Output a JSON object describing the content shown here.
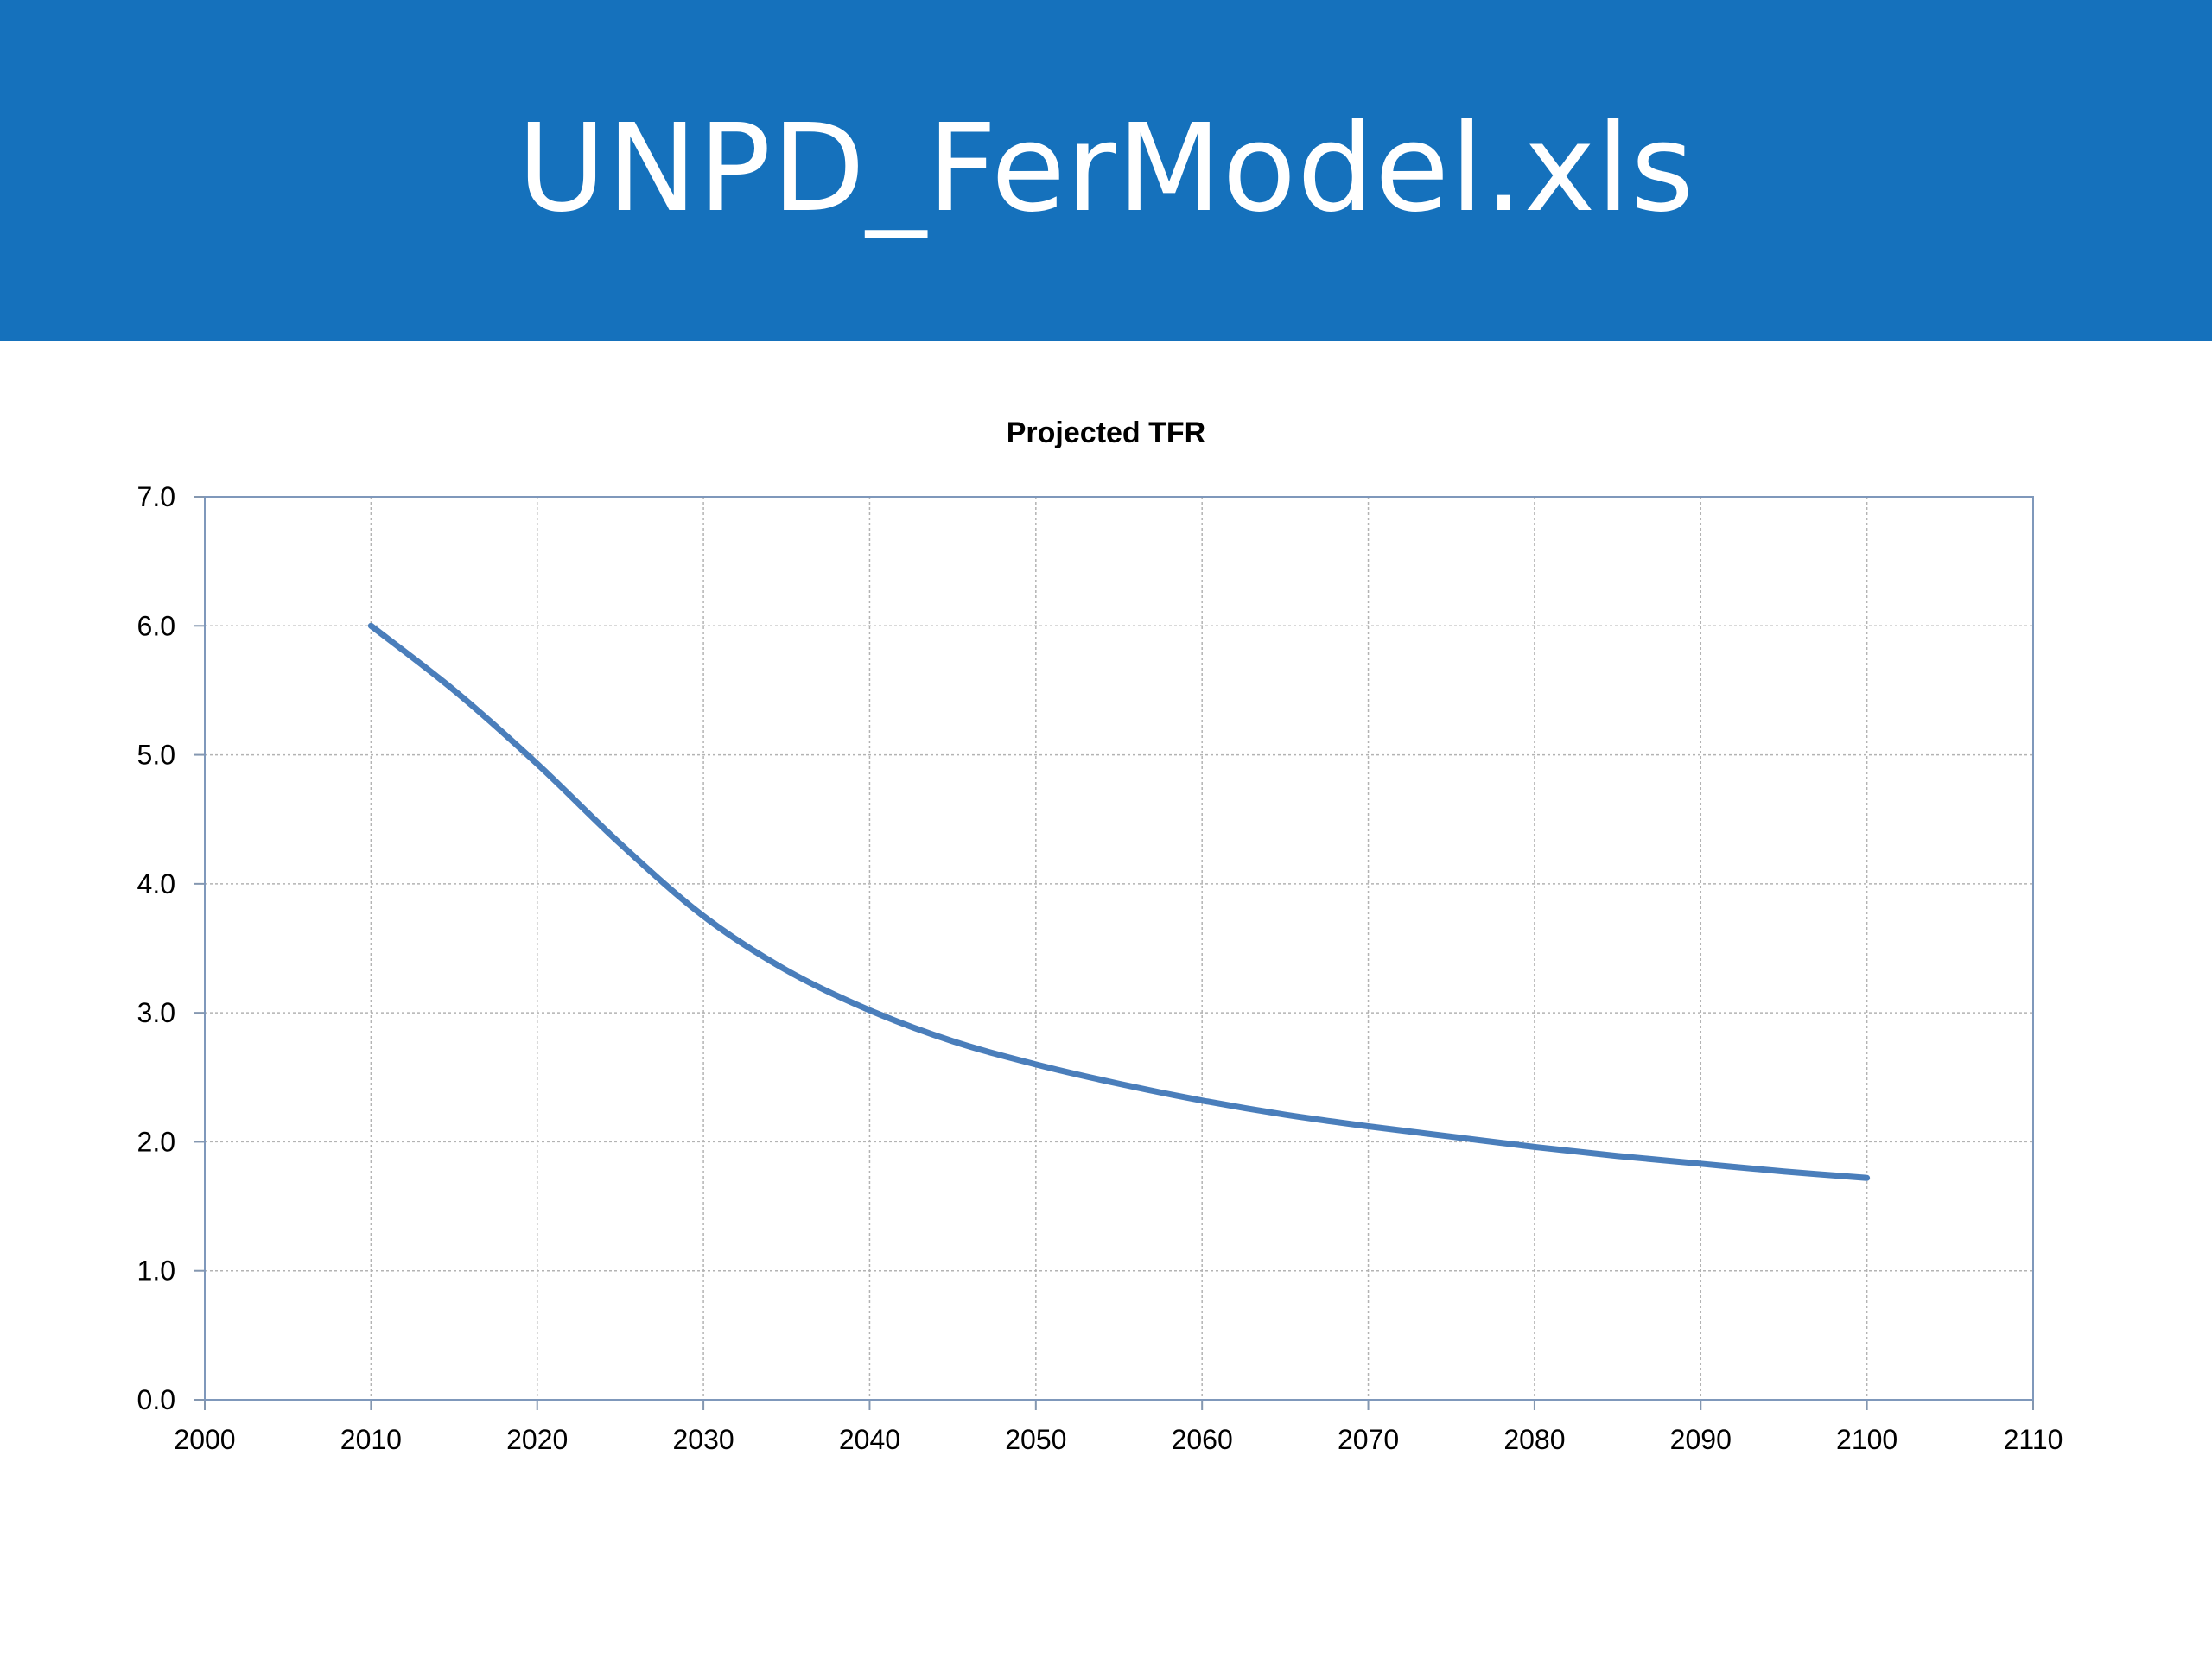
{
  "slide": {
    "title": "UNPD_FerModel.xls"
  },
  "chart_data": {
    "type": "line",
    "title": "Projected TFR",
    "xlabel": "",
    "ylabel": "",
    "xlim": [
      2000,
      2110
    ],
    "ylim": [
      0,
      7
    ],
    "x_ticks": [
      2000,
      2010,
      2020,
      2030,
      2040,
      2050,
      2060,
      2070,
      2080,
      2090,
      2100,
      2110
    ],
    "y_ticks": [
      "0.0",
      "1.0",
      "2.0",
      "3.0",
      "4.0",
      "5.0",
      "6.0",
      "7.0"
    ],
    "grid": true,
    "legend": "none",
    "series": [
      {
        "color": "#4a7ebb",
        "x": [
          2010,
          2015,
          2020,
          2025,
          2030,
          2035,
          2040,
          2045,
          2050,
          2055,
          2060,
          2065,
          2070,
          2075,
          2080,
          2085,
          2090,
          2095,
          2100
        ],
        "values": [
          6.0,
          5.5,
          4.93,
          4.31,
          3.75,
          3.33,
          3.02,
          2.78,
          2.6,
          2.45,
          2.32,
          2.21,
          2.12,
          2.04,
          1.96,
          1.89,
          1.83,
          1.77,
          1.72
        ]
      }
    ]
  }
}
